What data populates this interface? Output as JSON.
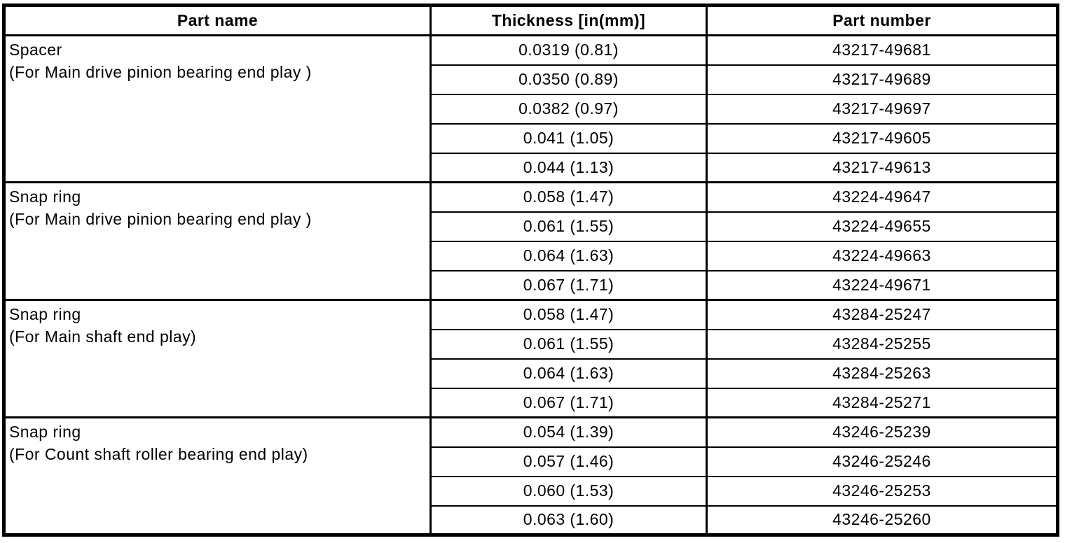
{
  "colors": {
    "border": "#000000",
    "background": "#ffffff",
    "text": "#000000"
  },
  "table": {
    "headers": {
      "part_name": "Part name",
      "thickness": "Thickness [in(mm)]",
      "part_number": "Part number"
    },
    "groups": [
      {
        "part_name": "Spacer",
        "part_note": "(For Main drive pinion bearing end play )",
        "rows": [
          {
            "thickness": "0.0319 (0.81)",
            "part_number": "43217-49681"
          },
          {
            "thickness": "0.0350 (0.89)",
            "part_number": "43217-49689"
          },
          {
            "thickness": "0.0382 (0.97)",
            "part_number": "43217-49697"
          },
          {
            "thickness": "0.041 (1.05)",
            "part_number": "43217-49605"
          },
          {
            "thickness": "0.044 (1.13)",
            "part_number": "43217-49613"
          }
        ]
      },
      {
        "part_name": "Snap ring",
        "part_note": "(For Main drive pinion bearing end play )",
        "rows": [
          {
            "thickness": "0.058 (1.47)",
            "part_number": "43224-49647"
          },
          {
            "thickness": "0.061 (1.55)",
            "part_number": "43224-49655"
          },
          {
            "thickness": "0.064 (1.63)",
            "part_number": "43224-49663"
          },
          {
            "thickness": "0.067 (1.71)",
            "part_number": "43224-49671"
          }
        ]
      },
      {
        "part_name": "Snap ring",
        "part_note": "(For Main shaft end play)",
        "rows": [
          {
            "thickness": "0.058 (1.47)",
            "part_number": "43284-25247"
          },
          {
            "thickness": "0.061 (1.55)",
            "part_number": "43284-25255"
          },
          {
            "thickness": "0.064 (1.63)",
            "part_number": "43284-25263"
          },
          {
            "thickness": "0.067 (1.71)",
            "part_number": "43284-25271"
          }
        ]
      },
      {
        "part_name": "Snap ring",
        "part_note": "(For Count shaft roller bearing end play)",
        "rows": [
          {
            "thickness": "0.054 (1.39)",
            "part_number": "43246-25239"
          },
          {
            "thickness": "0.057 (1.46)",
            "part_number": "43246-25246"
          },
          {
            "thickness": "0.060 (1.53)",
            "part_number": "43246-25253"
          },
          {
            "thickness": "0.063 (1.60)",
            "part_number": "43246-25260"
          }
        ]
      }
    ]
  }
}
